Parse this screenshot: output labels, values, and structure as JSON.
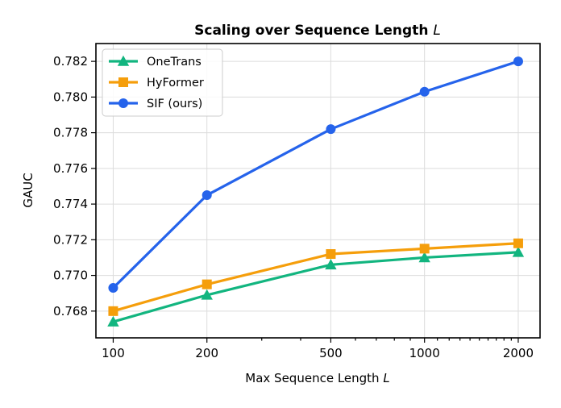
{
  "chart_data": {
    "type": "line",
    "title": "Scaling over Sequence Length",
    "title_var": "L",
    "xlabel": "Max Sequence Length",
    "xlabel_var": "L",
    "ylabel": "GAUC",
    "x_scale": "log",
    "x": [
      100,
      200,
      500,
      1000,
      2000
    ],
    "x_tick_labels": [
      "100",
      "200",
      "500",
      "1000",
      "2000"
    ],
    "xlim": [
      88,
      2350
    ],
    "ylim": [
      0.7665,
      0.783
    ],
    "y_ticks": [
      0.768,
      0.77,
      0.772,
      0.774,
      0.776,
      0.778,
      0.78,
      0.782
    ],
    "y_tick_labels": [
      "0.768",
      "0.770",
      "0.772",
      "0.774",
      "0.776",
      "0.778",
      "0.780",
      "0.782"
    ],
    "grid": true,
    "legend_position": "top-left",
    "series": [
      {
        "name": "OneTrans",
        "marker": "triangle",
        "color": "#12b57f",
        "values": [
          0.7674,
          0.7689,
          0.7706,
          0.771,
          0.7713
        ]
      },
      {
        "name": "HyFormer",
        "marker": "square",
        "color": "#f59e0b",
        "values": [
          0.768,
          0.7695,
          0.7712,
          0.7715,
          0.7718
        ]
      },
      {
        "name": "SIF (ours)",
        "marker": "circle",
        "color": "#2563eb",
        "values": [
          0.7693,
          0.7745,
          0.7782,
          0.7803,
          0.782
        ]
      }
    ]
  }
}
